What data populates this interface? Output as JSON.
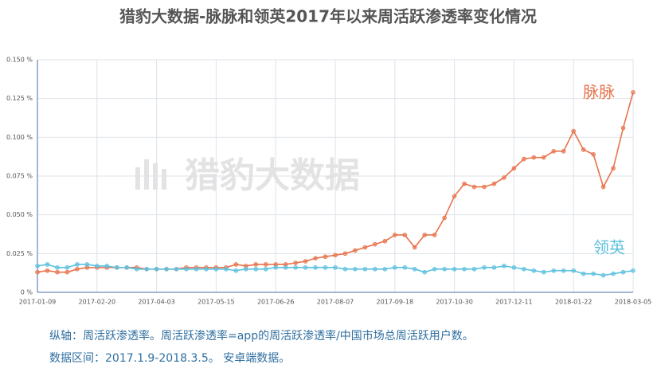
{
  "chart_data": {
    "type": "line",
    "title": "猎豹大数据-脉脉和领英2017年以来周活跃渗透率变化情况",
    "watermark": "猎豹大数据",
    "categories": [
      "2017-01-09",
      null,
      null,
      null,
      null,
      null,
      "2017-02-20",
      null,
      null,
      null,
      null,
      null,
      "2017-04-03",
      null,
      null,
      null,
      null,
      null,
      "2017-05-15",
      null,
      null,
      null,
      null,
      null,
      "2017-06-26",
      null,
      null,
      null,
      null,
      null,
      "2017-08-07",
      null,
      null,
      null,
      null,
      null,
      "2017-09-18",
      null,
      null,
      null,
      null,
      null,
      "2017-10-30",
      null,
      null,
      null,
      null,
      null,
      "2017-12-11",
      null,
      null,
      null,
      null,
      null,
      "2018-01-22",
      null,
      null,
      null,
      null,
      null,
      "2018-03-05"
    ],
    "series": [
      {
        "name": "脉脉",
        "color": "#e8734d",
        "values": [
          0.013,
          0.014,
          0.013,
          0.013,
          0.015,
          0.016,
          0.016,
          0.016,
          0.016,
          0.016,
          0.016,
          0.015,
          0.015,
          0.015,
          0.015,
          0.016,
          0.016,
          0.016,
          0.016,
          0.016,
          0.018,
          0.017,
          0.018,
          0.018,
          0.018,
          0.018,
          0.019,
          0.02,
          0.022,
          0.023,
          0.024,
          0.025,
          0.027,
          0.029,
          0.031,
          0.033,
          0.037,
          0.037,
          0.029,
          0.037,
          0.037,
          0.048,
          0.062,
          0.07,
          0.068,
          0.068,
          0.07,
          0.074,
          0.08,
          0.086,
          0.087,
          0.087,
          0.091,
          0.091,
          0.104,
          0.092,
          0.089,
          0.068,
          0.08,
          0.106,
          0.129
        ]
      },
      {
        "name": "领英",
        "color": "#5cc0df",
        "values": [
          0.017,
          0.018,
          0.016,
          0.016,
          0.018,
          0.018,
          0.017,
          0.017,
          0.016,
          0.016,
          0.015,
          0.015,
          0.015,
          0.015,
          0.015,
          0.015,
          0.015,
          0.015,
          0.015,
          0.015,
          0.014,
          0.015,
          0.015,
          0.015,
          0.016,
          0.016,
          0.016,
          0.016,
          0.016,
          0.016,
          0.016,
          0.015,
          0.015,
          0.015,
          0.015,
          0.015,
          0.016,
          0.016,
          0.015,
          0.013,
          0.015,
          0.015,
          0.015,
          0.015,
          0.015,
          0.016,
          0.016,
          0.017,
          0.016,
          0.015,
          0.014,
          0.013,
          0.014,
          0.014,
          0.014,
          0.012,
          0.012,
          0.011,
          0.012,
          0.013,
          0.014
        ]
      }
    ],
    "ylim": [
      0,
      0.15
    ],
    "yticks": [
      {
        "value": 0,
        "label": "0 %"
      },
      {
        "value": 0.025,
        "label": "0.025 %"
      },
      {
        "value": 0.05,
        "label": "0.050 %"
      },
      {
        "value": 0.075,
        "label": "0.075 %"
      },
      {
        "value": 0.1,
        "label": "0.100 %"
      },
      {
        "value": 0.125,
        "label": "0.125 %"
      },
      {
        "value": 0.15,
        "label": "0.150 %"
      }
    ],
    "grid": true,
    "notes": [
      "纵轴：周活跃渗透率。周活跃渗透率=app的周活跃渗透率/中国市场总周活跃用户数。",
      "数据区间：2017.1.9-2018.3.5。 安卓端数据。"
    ]
  }
}
